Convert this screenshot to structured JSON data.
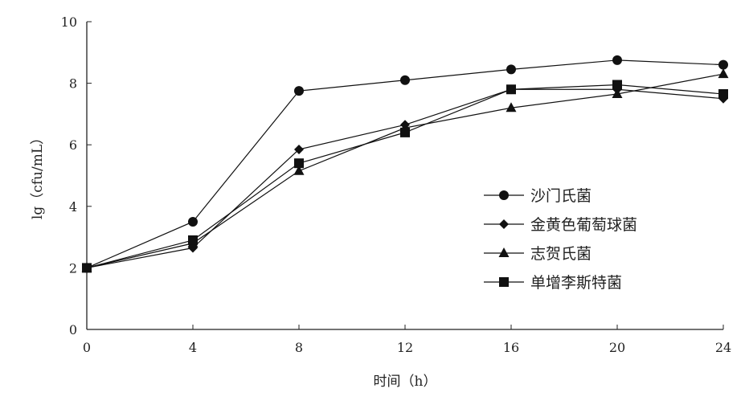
{
  "chart_data": {
    "type": "line",
    "title": "",
    "xlabel": "时间（h）",
    "ylabel": "lg（cfu/mL）",
    "x": [
      0,
      4,
      8,
      12,
      16,
      20,
      24
    ],
    "xlim": [
      0,
      24
    ],
    "ylim": [
      0,
      10
    ],
    "xticks": [
      0,
      4,
      8,
      12,
      16,
      20,
      24
    ],
    "yticks": [
      0,
      2,
      4,
      6,
      8,
      10
    ],
    "grid": false,
    "legend_position": "right",
    "series": [
      {
        "name": "沙门氏菌",
        "marker": "circle",
        "values": [
          2.0,
          3.5,
          7.75,
          8.1,
          8.45,
          8.75,
          8.6
        ]
      },
      {
        "name": "金黄色葡萄球菌",
        "marker": "diamond",
        "values": [
          2.0,
          2.65,
          5.85,
          6.65,
          7.8,
          7.8,
          7.5
        ]
      },
      {
        "name": "志贺氏菌",
        "marker": "triangle",
        "values": [
          2.0,
          2.8,
          5.15,
          6.55,
          7.2,
          7.65,
          8.3
        ]
      },
      {
        "name": "单增李斯特菌",
        "marker": "square",
        "values": [
          2.0,
          2.9,
          5.4,
          6.4,
          7.8,
          7.95,
          7.65
        ]
      }
    ],
    "colors": {
      "line": "#111111",
      "axis": "#222222"
    }
  }
}
